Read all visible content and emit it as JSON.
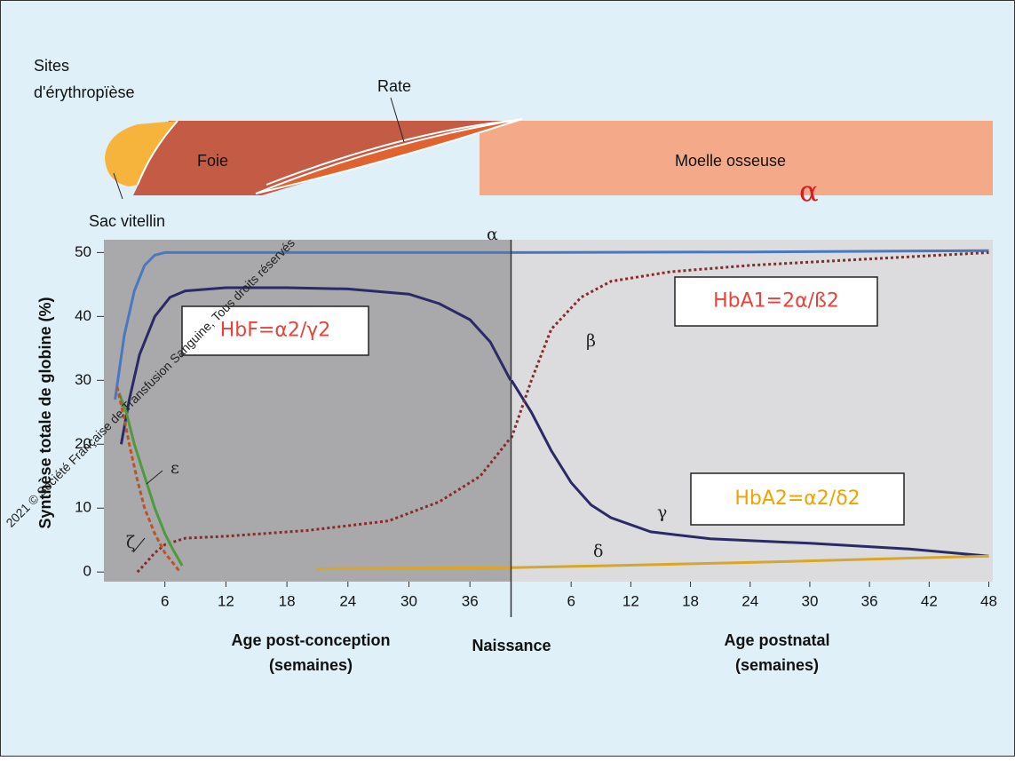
{
  "erythropoiesis": {
    "title": [
      "Sites",
      "d'érythropïèse"
    ],
    "yolk_sac": "Sac vitellin",
    "liver": "Foie",
    "spleen": "Rate",
    "marrow": "Moelle osseuse",
    "marker": "α"
  },
  "y_label": "Synthèse totale de globine (%)",
  "birth_label": "Naissance",
  "watermark": "2021 © Société Française de Transfusion Sanguine, Tous droits réservés",
  "chart_data": [
    {
      "type": "line",
      "x_label": [
        "Age post-conception",
        "(semaines)"
      ],
      "background": "#a9a9ab",
      "xlim": [
        0,
        40
      ],
      "ylim": [
        -1.5,
        52
      ],
      "xticks": [
        6,
        12,
        18,
        24,
        30,
        36
      ],
      "yticks": [
        0,
        10,
        20,
        30,
        40,
        50
      ],
      "series": [
        {
          "name": "α",
          "color": "#4a78c0",
          "dash": "none",
          "x": [
            1.1,
            2,
            3,
            4,
            5,
            6,
            8,
            40
          ],
          "values": [
            27,
            37,
            44,
            48,
            49.6,
            50,
            50,
            50
          ]
        },
        {
          "color": "#2b2a66",
          "dash": "none",
          "x": [
            1.7,
            2.5,
            3.5,
            5,
            6.5,
            8,
            12,
            18,
            24,
            30,
            33,
            36,
            38,
            40
          ],
          "values": [
            20,
            27,
            34,
            40,
            43,
            44,
            44.5,
            44.5,
            44.3,
            43.5,
            42,
            39.5,
            36,
            30
          ]
        },
        {
          "color": "#8a2a2a",
          "dash": "3 3",
          "x": [
            3.3,
            4,
            5,
            6,
            8,
            12,
            20,
            28,
            33,
            37,
            40
          ],
          "values": [
            0,
            1.2,
            3,
            4.3,
            5.3,
            5.6,
            6.5,
            8,
            11,
            15,
            21
          ]
        },
        {
          "name": "ε",
          "color": "#4f9a3e",
          "dash": "none",
          "x": [
            1.5,
            2.2,
            3,
            4,
            5,
            6,
            6.8,
            7.7
          ],
          "values": [
            28,
            25,
            20,
            15,
            10,
            6,
            3.5,
            1
          ]
        },
        {
          "name": "ζ",
          "color": "#b8552d",
          "dash": "5 3",
          "x": [
            1.3,
            2,
            2.5,
            3.2,
            4,
            5,
            6,
            7,
            7.5
          ],
          "values": [
            29,
            24,
            20,
            15,
            10,
            6,
            3,
            1,
            0
          ]
        },
        {
          "color": "#d8a628",
          "dash": "none",
          "x": [
            20.9,
            30,
            40
          ],
          "values": [
            0.5,
            0.6,
            0.7
          ]
        }
      ],
      "annotations": [
        {
          "text": "HbF=α2/γ2",
          "color": "#e8423a"
        }
      ]
    },
    {
      "type": "line",
      "x_label": [
        "Age postnatal",
        "(semaines)"
      ],
      "background": "#dcdcde",
      "xlim": [
        0,
        48.4
      ],
      "ylim": [
        -1.5,
        52
      ],
      "xticks": [
        6,
        12,
        18,
        24,
        30,
        36,
        42,
        48
      ],
      "series": [
        {
          "color": "#4a78c0",
          "dash": "none",
          "x": [
            0,
            24,
            48
          ],
          "values": [
            50,
            50.1,
            50.3
          ]
        },
        {
          "name": "γ",
          "color": "#2b2a66",
          "dash": "none",
          "x": [
            0,
            2,
            4,
            6,
            8,
            10,
            14,
            20,
            30,
            40,
            48
          ],
          "values": [
            30,
            25,
            19,
            14,
            10.5,
            8.5,
            6.3,
            5.2,
            4.5,
            3.6,
            2.5
          ]
        },
        {
          "name": "β",
          "color": "#8a2a2a",
          "dash": "3 3",
          "x": [
            0,
            2,
            4,
            7,
            10,
            16,
            24,
            36,
            48
          ],
          "values": [
            21,
            30,
            38,
            43,
            45.5,
            47,
            48,
            49,
            50
          ]
        },
        {
          "name": "δ",
          "color": "#d8a628",
          "dash": "none",
          "x": [
            0,
            10,
            24,
            36,
            48
          ],
          "values": [
            0.7,
            1,
            1.5,
            2,
            2.5
          ]
        }
      ],
      "annotations": [
        {
          "text": "HbA1=2α/ß2",
          "color": "#e8423a"
        },
        {
          "text": "HbA2=α2/δ2",
          "color": "#f2a100"
        }
      ]
    }
  ]
}
